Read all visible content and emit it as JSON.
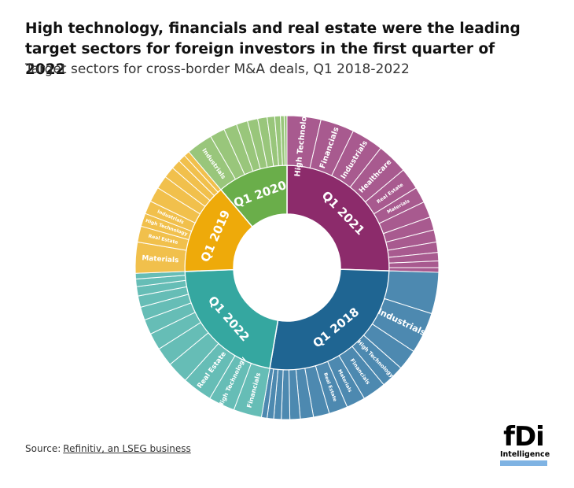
{
  "chart_data": {
    "type": "sunburst",
    "title": "High technology, financials and real estate were the leading target sectors for foreign investors in the first quarter of 2022",
    "subtitle": "Target sectors for cross-border M&A deals, Q1 2018-2022",
    "categories": [
      "Q1 2021",
      "Q1 2018",
      "Q1 2022",
      "Q1 2019",
      "Q1 2020"
    ],
    "values": [
      25.5,
      27.2,
      21.7,
      14.4,
      11.2
    ],
    "colors": [
      "#8c2b6b",
      "#1f6592",
      "#35a7a0",
      "#eeaa0a",
      "#6aae4a"
    ],
    "children": [
      {
        "color": "#a85a8f",
        "categories": [
          "High Technology",
          "Financials",
          "Industrials",
          "Healthcare",
          "Real Estate",
          "Materials",
          null,
          null,
          null,
          null,
          null,
          null,
          null
        ],
        "values": [
          3.6,
          3.6,
          3.4,
          3.3,
          2.3,
          1.7,
          1.7,
          1.4,
          1.3,
          1.1,
          0.9,
          0.7,
          0.5
        ]
      },
      {
        "color": "#4d89b0",
        "categories": [
          null,
          "Industrials",
          null,
          "High Technology",
          "Financials",
          "Materials",
          "Real Estate",
          null,
          null,
          null,
          null,
          null,
          null,
          null
        ],
        "values": [
          4.4,
          4.4,
          2.2,
          2.5,
          2.5,
          2.0,
          2.0,
          1.7,
          1.4,
          1.1,
          0.9,
          0.8,
          0.7,
          0.6
        ]
      },
      {
        "color": "#66bdb6",
        "categories": [
          "Financials",
          "High Technology",
          "Real Estate",
          null,
          null,
          null,
          null,
          null,
          null,
          null,
          null,
          null
        ],
        "values": [
          3.0,
          2.8,
          3.2,
          2.3,
          2.0,
          1.8,
          1.6,
          1.4,
          1.2,
          1.0,
          0.8,
          0.6
        ]
      },
      {
        "color": "#f1c04c",
        "categories": [
          "Materials",
          "Real Estate",
          "High Technology",
          "Industrials",
          null,
          null,
          null,
          null,
          null,
          null
        ],
        "values": [
          3.3,
          1.7,
          1.4,
          1.4,
          1.6,
          1.4,
          1.2,
          1.0,
          0.8,
          0.6
        ]
      },
      {
        "color": "#99c67b",
        "categories": [
          "Industrials",
          null,
          null,
          null,
          null,
          null,
          null,
          null,
          null,
          null
        ],
        "values": [
          2.8,
          1.6,
          1.4,
          1.2,
          1.1,
          1.0,
          0.8,
          0.6,
          0.4,
          0.3
        ]
      }
    ]
  },
  "source": {
    "prefix": "Source:",
    "text": "Refinitiv, an LSEG business"
  },
  "logo": {
    "main": "fDi",
    "sub": "Intelligence"
  }
}
